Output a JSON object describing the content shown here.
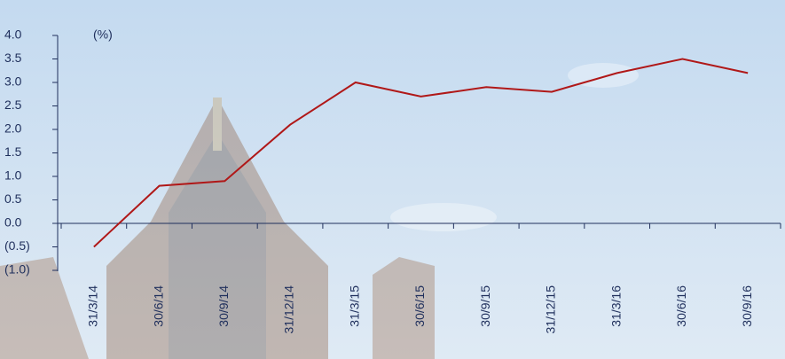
{
  "chart_data": {
    "type": "line",
    "unit_label": "(%)",
    "categories": [
      "31/3/14",
      "30/6/14",
      "30/9/14",
      "31/12/14",
      "31/3/15",
      "30/6/15",
      "30/9/15",
      "31/12/15",
      "31/3/16",
      "30/6/16",
      "30/9/16"
    ],
    "values": [
      -0.5,
      0.8,
      0.9,
      2.1,
      3.0,
      2.7,
      2.9,
      2.8,
      3.2,
      3.5,
      3.2
    ],
    "color": "#b01818",
    "ylim": [
      -1.0,
      4.0
    ],
    "yticks": [
      {
        "value": 4.0,
        "label": "4.0"
      },
      {
        "value": 3.5,
        "label": "3.5"
      },
      {
        "value": 3.0,
        "label": "3.0"
      },
      {
        "value": 2.5,
        "label": "2.5"
      },
      {
        "value": 2.0,
        "label": "2.0"
      },
      {
        "value": 1.5,
        "label": "1.5"
      },
      {
        "value": 1.0,
        "label": "1.0"
      },
      {
        "value": 0.5,
        "label": "0.5"
      },
      {
        "value": 0,
        "label": "0.0"
      },
      {
        "value": -0.5,
        "label": "(0.5)"
      },
      {
        "value": -1.0,
        "label": "(1.0)"
      }
    ],
    "grid": false
  }
}
